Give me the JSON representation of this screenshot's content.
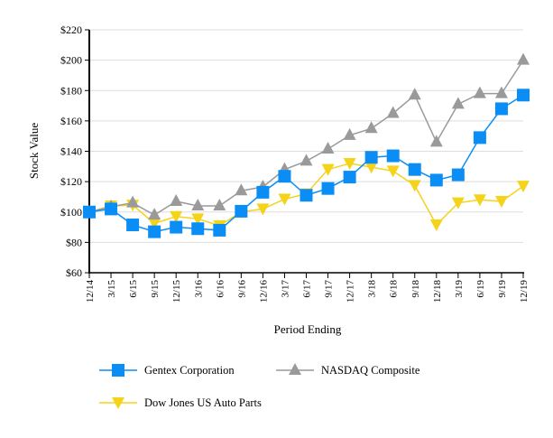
{
  "chart_data": {
    "type": "line",
    "xlabel": "Period Ending",
    "ylabel": "Stock Value",
    "ylim": [
      60,
      220
    ],
    "yticks": [
      60,
      80,
      100,
      120,
      140,
      160,
      180,
      200,
      220
    ],
    "ytick_labels": [
      "$60",
      "$80",
      "$100",
      "$120",
      "$140",
      "$160",
      "$180",
      "$200",
      "$220"
    ],
    "grid": true,
    "legend": "bottom",
    "categories": [
      "12/14",
      "3/15",
      "6/15",
      "9/15",
      "12/15",
      "3/16",
      "6/16",
      "9/16",
      "12/16",
      "3/17",
      "6/17",
      "9/17",
      "12/17",
      "3/18",
      "6/18",
      "9/18",
      "12/18",
      "3/19",
      "6/19",
      "9/19",
      "12/19"
    ],
    "series": [
      {
        "name": "Gentex Corporation",
        "color": "#0a8ef5",
        "marker": "square",
        "values": [
          100,
          102,
          91.5,
          87,
          90,
          89,
          88,
          100.5,
          113,
          123.5,
          111,
          115.5,
          123,
          136,
          137,
          128,
          121,
          124.5,
          149,
          168,
          177
        ]
      },
      {
        "name": "NASDAQ Composite",
        "color": "#9a9a9a",
        "marker": "triangle-up",
        "values": [
          100,
          103.5,
          106,
          98,
          107,
          104,
          104,
          114,
          116.5,
          128,
          133.5,
          141.5,
          150.5,
          155,
          165,
          177,
          146,
          171,
          178,
          178,
          200
        ]
      },
      {
        "name": "Dow Jones US Auto Parts",
        "color": "#f5d31a",
        "marker": "triangle-down",
        "values": [
          100,
          104,
          104.5,
          92.5,
          97,
          95.5,
          91,
          100,
          102,
          108.5,
          112,
          128,
          132,
          129.5,
          127,
          117.5,
          91.5,
          106,
          108,
          107,
          117
        ]
      }
    ]
  }
}
